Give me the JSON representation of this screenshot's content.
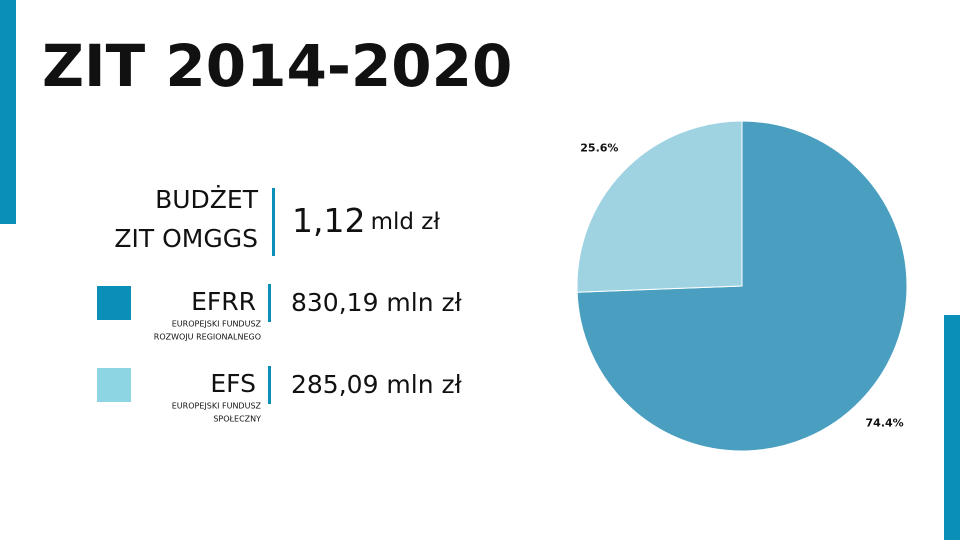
{
  "slide": {
    "title": "ZIT 2014-2020",
    "budget": {
      "label_lines": [
        "BUDŻET",
        "ZIT OMGGS"
      ],
      "value": "1,12",
      "unit": "mld zł"
    },
    "funds": [
      {
        "name": "EFRR",
        "description_lines": [
          "EUROPEJSKI FUNDUSZ",
          "ROZWOJU REGIONALNEGO"
        ],
        "amount": "830,19 mln zł",
        "color": "#0b8fb9"
      },
      {
        "name": "EFS",
        "description_lines": [
          "EUROPEJSKI FUNDUSZ",
          "SPOŁECZNY"
        ],
        "amount": "285,09 mln zł",
        "color": "#8dd5e3"
      }
    ]
  },
  "chart_data": {
    "type": "pie",
    "values": [
      74.4,
      25.6
    ],
    "value_labels": [
      "74.4%",
      "25.6%"
    ],
    "colors": [
      "#4a9fc0",
      "#9fd3e2"
    ]
  }
}
